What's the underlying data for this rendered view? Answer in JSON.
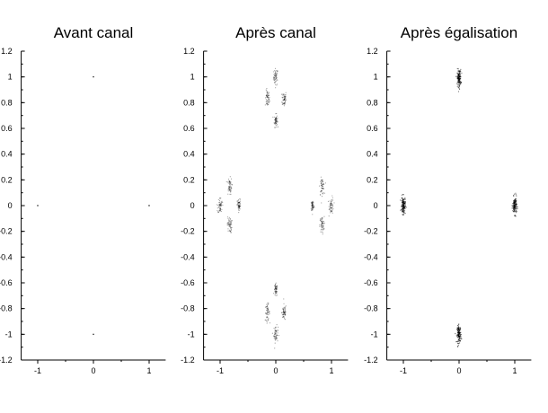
{
  "chart_data": [
    {
      "type": "scatter",
      "title": "Avant canal",
      "xlim": [
        -1.2,
        1.2
      ],
      "ylim": [
        -1.2,
        1.2
      ],
      "xticks": [
        "-1",
        "0",
        "1"
      ],
      "yticks": [
        "1.2",
        "1",
        "0.8",
        "0.6",
        "0.4",
        "0.2",
        "0",
        "-0.2",
        "-0.4",
        "-0.6",
        "-0.8",
        "-1",
        "-1.2"
      ],
      "grid": false,
      "clusters": [
        {
          "x": 1,
          "y": 0,
          "spread": 0.0
        },
        {
          "x": -1,
          "y": 0,
          "spread": 0.0
        },
        {
          "x": 0,
          "y": 1,
          "spread": 0.0
        },
        {
          "x": 0,
          "y": -1,
          "spread": 0.0
        }
      ]
    },
    {
      "type": "scatter",
      "title": "Après canal",
      "xlim": [
        -1.2,
        1.2
      ],
      "ylim": [
        -1.2,
        1.2
      ],
      "xticks": [
        "-1",
        "0",
        "1"
      ],
      "yticks": [
        "1.2",
        "1",
        "0.8",
        "0.6",
        "0.4",
        "0.2",
        "0",
        "-0.2",
        "-0.4",
        "-0.6",
        "-0.8",
        "-1",
        "-1.2"
      ],
      "grid": false,
      "clusters": [
        {
          "x": 0,
          "y": 1.0,
          "spread": 0.02
        },
        {
          "x": -0.15,
          "y": 0.83,
          "spread": 0.02
        },
        {
          "x": 0.15,
          "y": 0.83,
          "spread": 0.02
        },
        {
          "x": 0,
          "y": 0.66,
          "spread": 0.015
        },
        {
          "x": 0,
          "y": -1.0,
          "spread": 0.02
        },
        {
          "x": -0.15,
          "y": -0.83,
          "spread": 0.02
        },
        {
          "x": 0.15,
          "y": -0.83,
          "spread": 0.02
        },
        {
          "x": 0,
          "y": -0.66,
          "spread": 0.015
        },
        {
          "x": 1.0,
          "y": 0,
          "spread": 0.02
        },
        {
          "x": 0.83,
          "y": 0.15,
          "spread": 0.02
        },
        {
          "x": 0.83,
          "y": -0.15,
          "spread": 0.02
        },
        {
          "x": 0.66,
          "y": 0,
          "spread": 0.015
        },
        {
          "x": -1.0,
          "y": 0,
          "spread": 0.02
        },
        {
          "x": -0.83,
          "y": 0.15,
          "spread": 0.02
        },
        {
          "x": -0.83,
          "y": -0.15,
          "spread": 0.02
        },
        {
          "x": -0.66,
          "y": 0,
          "spread": 0.015
        }
      ]
    },
    {
      "type": "scatter",
      "title": "Après égalisation",
      "xlim": [
        -1.2,
        1.2
      ],
      "ylim": [
        -1.2,
        1.2
      ],
      "xticks": [
        "-1",
        "0",
        "1"
      ],
      "yticks": [
        "1.2",
        "1",
        "0.8",
        "0.6",
        "0.4",
        "0.2",
        "0",
        "-0.2",
        "-0.4",
        "-0.6",
        "-0.8",
        "-1",
        "-1.2"
      ],
      "grid": false,
      "clusters": [
        {
          "x": 0,
          "y": 0.99,
          "spread": 0.03
        },
        {
          "x": 0,
          "y": -1.0,
          "spread": 0.03
        },
        {
          "x": 1.0,
          "y": 0,
          "spread": 0.03
        },
        {
          "x": -1.0,
          "y": 0,
          "spread": 0.03
        }
      ]
    }
  ]
}
